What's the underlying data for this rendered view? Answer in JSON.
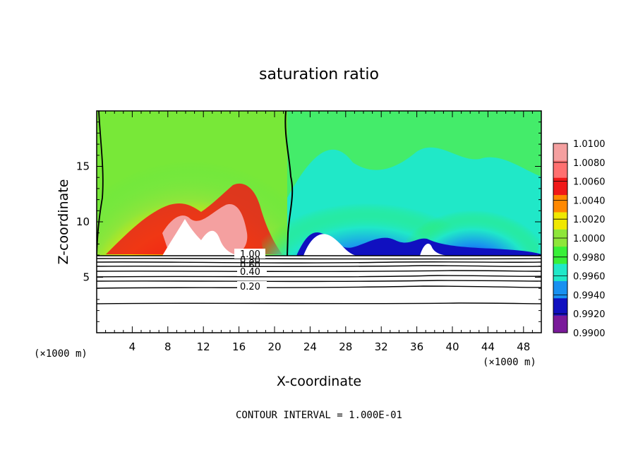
{
  "chart_data": {
    "type": "heatmap",
    "title": "saturation ratio",
    "xlabel": "X-coordinate",
    "ylabel": "Z-coordinate",
    "x_unit": "(×1000 m)",
    "y_unit": "(×1000 m)",
    "footer": "CONTOUR INTERVAL = 1.000E-01",
    "xlim": [
      0,
      50
    ],
    "ylim": [
      0,
      20
    ],
    "x_ticks": [
      4,
      8,
      12,
      16,
      20,
      24,
      28,
      32,
      36,
      40,
      44,
      48
    ],
    "y_ticks": [
      5,
      10,
      15
    ],
    "colorbar": {
      "levels": [
        1.01,
        1.008,
        1.006,
        1.004,
        1.002,
        1.0,
        0.998,
        0.996,
        0.994,
        0.992,
        0.99
      ],
      "labels": [
        "1.0100",
        "1.0080",
        "1.0060",
        "1.0040",
        "1.0020",
        "1.0000",
        "0.9980",
        "0.9960",
        "0.9940",
        "0.9920",
        "0.9900"
      ],
      "colors": [
        "#f4a0a0",
        "#ff7070",
        "#f01818",
        "#ff8800",
        "#f0e800",
        "#8ee63a",
        "#38f038",
        "#20e8c8",
        "#1890f0",
        "#1010c0",
        "#7a1a9a"
      ]
    },
    "contour_lines": [
      {
        "value": 1.0,
        "label": "1.00",
        "z": 7.0
      },
      {
        "value": 0.9,
        "label": "",
        "z": 6.7
      },
      {
        "value": 0.8,
        "label": "0.80",
        "z": 6.4
      },
      {
        "value": 0.6,
        "label": "0.60",
        "z": 6.0
      },
      {
        "value": 0.5,
        "label": "",
        "z": 5.6
      },
      {
        "value": 0.4,
        "label": "0.40",
        "z": 5.2
      },
      {
        "value": 0.3,
        "label": "",
        "z": 4.7
      },
      {
        "value": 0.2,
        "label": "0.20",
        "z": 4.1
      },
      {
        "value": 0.1,
        "label": "",
        "z": 2.8
      }
    ],
    "boundary_one_contour_x": [
      1,
      21.5
    ]
  }
}
